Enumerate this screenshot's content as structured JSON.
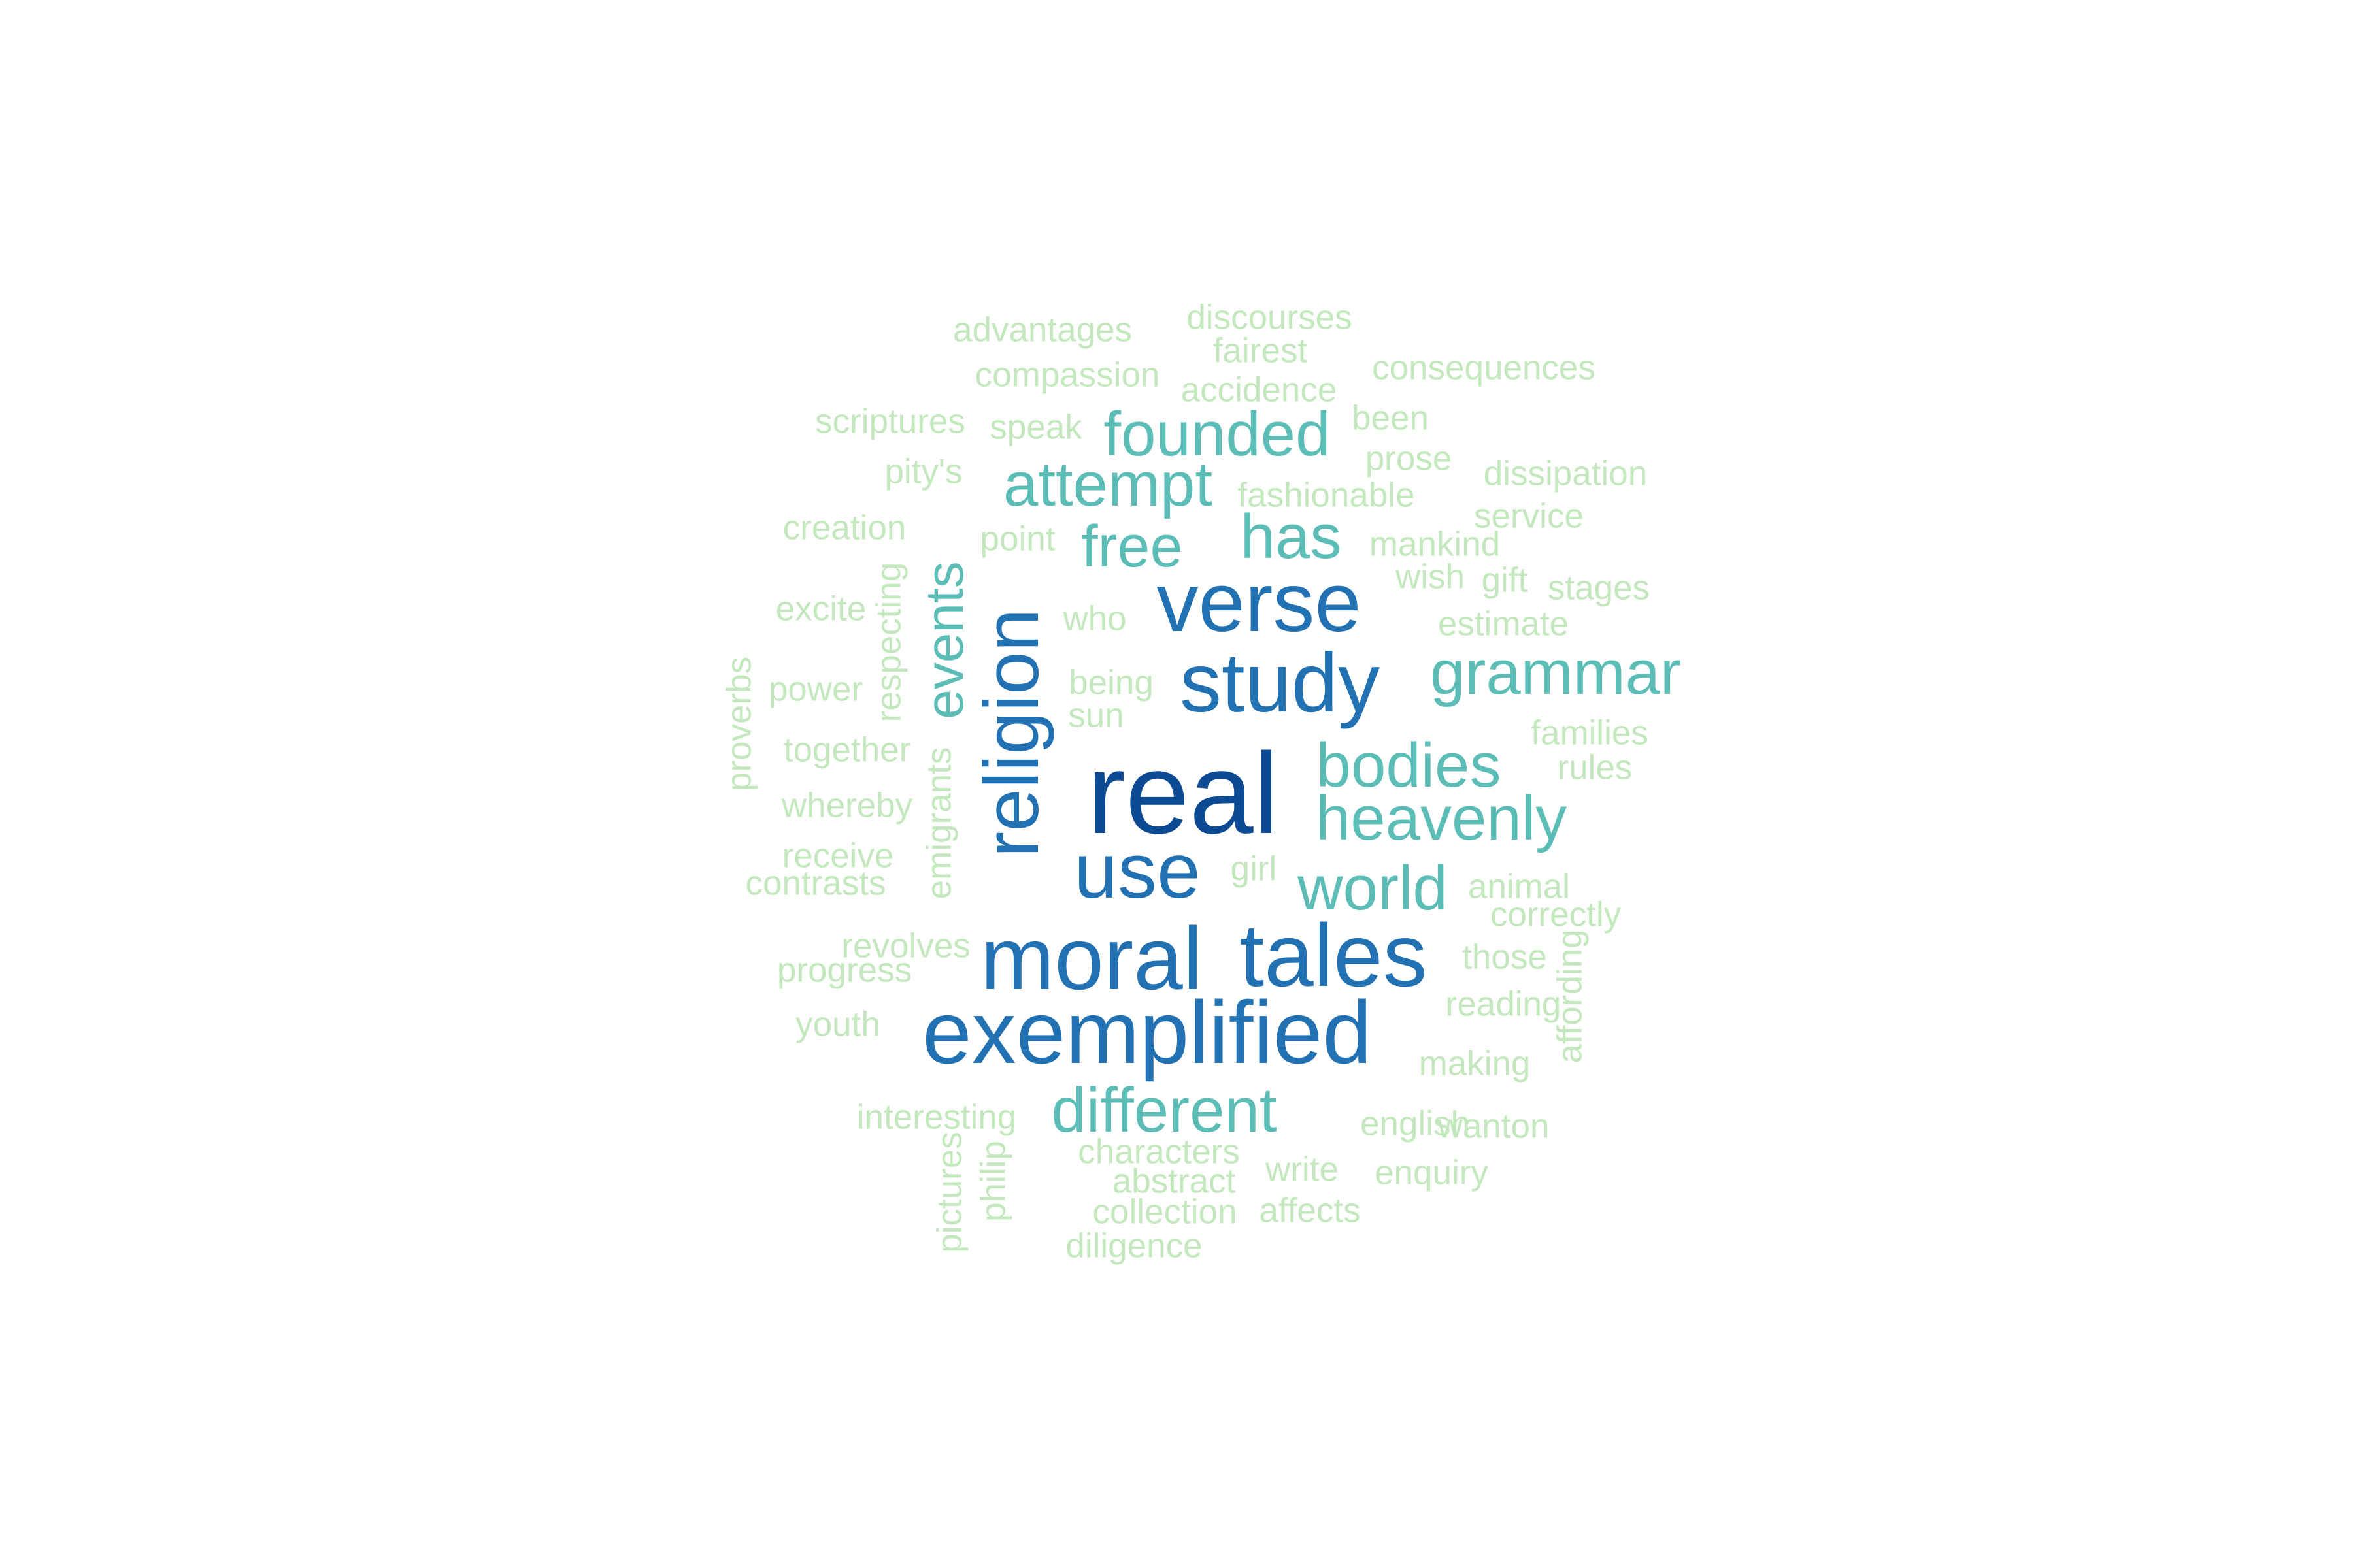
{
  "palette": {
    "darkest": "#0c4a93",
    "dark": "#2271b2",
    "mid": "#5bbdb6",
    "light": "#c4e8bd"
  },
  "words": [
    {
      "text": "real",
      "color": "darkest"
    },
    {
      "text": "moral",
      "color": "dark"
    },
    {
      "text": "tales",
      "color": "dark"
    },
    {
      "text": "exemplified",
      "color": "dark"
    },
    {
      "text": "verse",
      "color": "dark"
    },
    {
      "text": "study",
      "color": "dark"
    },
    {
      "text": "religion",
      "color": "dark"
    },
    {
      "text": "use",
      "color": "dark"
    },
    {
      "text": "founded",
      "color": "mid"
    },
    {
      "text": "attempt",
      "color": "mid"
    },
    {
      "text": "has",
      "color": "mid"
    },
    {
      "text": "free",
      "color": "mid"
    },
    {
      "text": "grammar",
      "color": "mid"
    },
    {
      "text": "events",
      "color": "mid"
    },
    {
      "text": "bodies",
      "color": "mid"
    },
    {
      "text": "heavenly",
      "color": "mid"
    },
    {
      "text": "world",
      "color": "mid"
    },
    {
      "text": "different",
      "color": "mid"
    },
    {
      "text": "advantages",
      "color": "light"
    },
    {
      "text": "discourses",
      "color": "light"
    },
    {
      "text": "fairest",
      "color": "light"
    },
    {
      "text": "compassion",
      "color": "light"
    },
    {
      "text": "consequences",
      "color": "light"
    },
    {
      "text": "accidence",
      "color": "light"
    },
    {
      "text": "scriptures",
      "color": "light"
    },
    {
      "text": "speak",
      "color": "light"
    },
    {
      "text": "been",
      "color": "light"
    },
    {
      "text": "prose",
      "color": "light"
    },
    {
      "text": "pity's",
      "color": "light"
    },
    {
      "text": "dissipation",
      "color": "light"
    },
    {
      "text": "fashionable",
      "color": "light"
    },
    {
      "text": "creation",
      "color": "light"
    },
    {
      "text": "point",
      "color": "light"
    },
    {
      "text": "service",
      "color": "light"
    },
    {
      "text": "mankind",
      "color": "light"
    },
    {
      "text": "wish",
      "color": "light"
    },
    {
      "text": "gift",
      "color": "light"
    },
    {
      "text": "stages",
      "color": "light"
    },
    {
      "text": "excite",
      "color": "light"
    },
    {
      "text": "respecting",
      "color": "light"
    },
    {
      "text": "who",
      "color": "light"
    },
    {
      "text": "estimate",
      "color": "light"
    },
    {
      "text": "proverbs",
      "color": "light"
    },
    {
      "text": "power",
      "color": "light"
    },
    {
      "text": "being",
      "color": "light"
    },
    {
      "text": "sun",
      "color": "light"
    },
    {
      "text": "together",
      "color": "light"
    },
    {
      "text": "families",
      "color": "light"
    },
    {
      "text": "rules",
      "color": "light"
    },
    {
      "text": "whereby",
      "color": "light"
    },
    {
      "text": "emigrants",
      "color": "light"
    },
    {
      "text": "receive",
      "color": "light"
    },
    {
      "text": "girl",
      "color": "light"
    },
    {
      "text": "contrasts",
      "color": "light"
    },
    {
      "text": "animal",
      "color": "light"
    },
    {
      "text": "correctly",
      "color": "light"
    },
    {
      "text": "revolves",
      "color": "light"
    },
    {
      "text": "progress",
      "color": "light"
    },
    {
      "text": "those",
      "color": "light"
    },
    {
      "text": "affording",
      "color": "light"
    },
    {
      "text": "reading",
      "color": "light"
    },
    {
      "text": "youth",
      "color": "light"
    },
    {
      "text": "making",
      "color": "light"
    },
    {
      "text": "interesting",
      "color": "light"
    },
    {
      "text": "english",
      "color": "light"
    },
    {
      "text": "wanton",
      "color": "light"
    },
    {
      "text": "pictures",
      "color": "light"
    },
    {
      "text": "philip",
      "color": "light"
    },
    {
      "text": "characters",
      "color": "light"
    },
    {
      "text": "write",
      "color": "light"
    },
    {
      "text": "enquiry",
      "color": "light"
    },
    {
      "text": "abstract",
      "color": "light"
    },
    {
      "text": "collection",
      "color": "light"
    },
    {
      "text": "affects",
      "color": "light"
    },
    {
      "text": "diligence",
      "color": "light"
    }
  ]
}
